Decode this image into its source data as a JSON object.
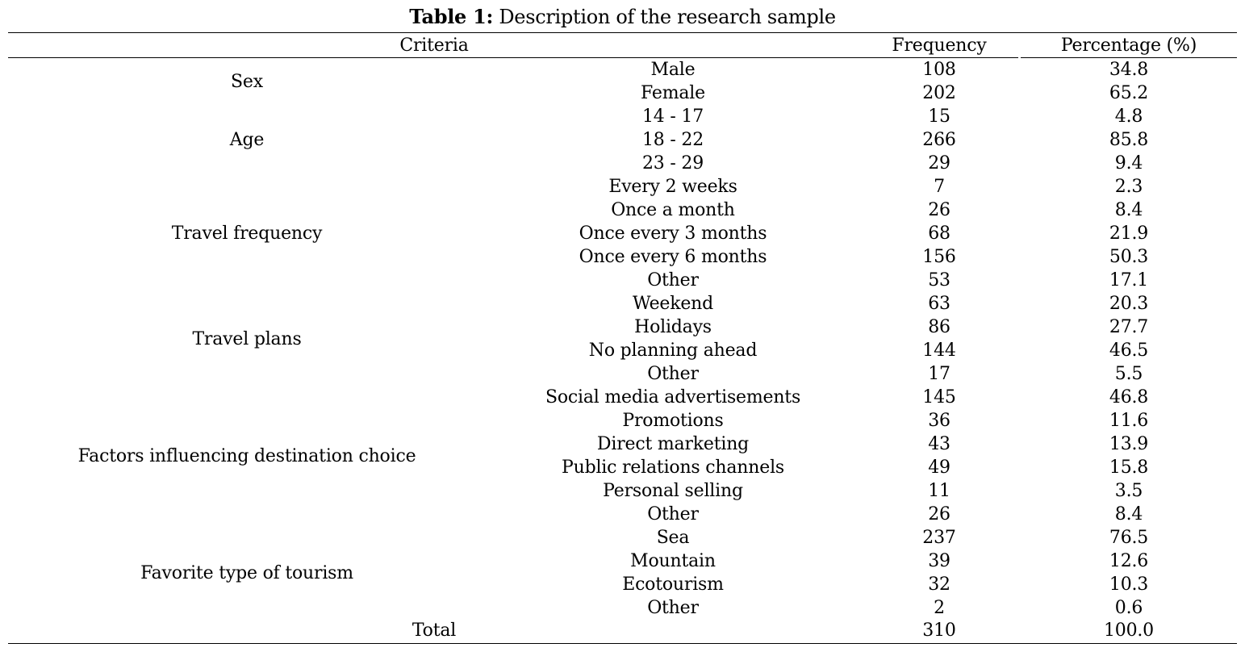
{
  "caption": {
    "label": "Table 1:",
    "text": " Description of the research sample"
  },
  "header": {
    "criteria": "Criteria",
    "frequency": "Frequency",
    "percentage": "Percentage (%)"
  },
  "groups": [
    {
      "name": "Sex",
      "rows": [
        {
          "label": "Male",
          "frequency": "108",
          "percentage": "34.8"
        },
        {
          "label": "Female",
          "frequency": "202",
          "percentage": "65.2"
        }
      ]
    },
    {
      "name": "Age",
      "rows": [
        {
          "label": "14 - 17",
          "frequency": "15",
          "percentage": "4.8"
        },
        {
          "label": "18 - 22",
          "frequency": "266",
          "percentage": "85.8"
        },
        {
          "label": "23 - 29",
          "frequency": "29",
          "percentage": "9.4"
        }
      ]
    },
    {
      "name": "Travel frequency",
      "rows": [
        {
          "label": "Every 2 weeks",
          "frequency": "7",
          "percentage": "2.3"
        },
        {
          "label": "Once a month",
          "frequency": "26",
          "percentage": "8.4"
        },
        {
          "label": "Once every 3 months",
          "frequency": "68",
          "percentage": "21.9"
        },
        {
          "label": "Once every 6 months",
          "frequency": "156",
          "percentage": "50.3"
        },
        {
          "label": "Other",
          "frequency": "53",
          "percentage": "17.1"
        }
      ]
    },
    {
      "name": "Travel plans",
      "rows": [
        {
          "label": "Weekend",
          "frequency": "63",
          "percentage": "20.3"
        },
        {
          "label": "Holidays",
          "frequency": "86",
          "percentage": "27.7"
        },
        {
          "label": "No planning ahead",
          "frequency": "144",
          "percentage": "46.5"
        },
        {
          "label": "Other",
          "frequency": "17",
          "percentage": "5.5"
        }
      ]
    },
    {
      "name": "Factors influencing destination choice",
      "rows": [
        {
          "label": "Social media advertisements",
          "frequency": "145",
          "percentage": "46.8"
        },
        {
          "label": "Promotions",
          "frequency": "36",
          "percentage": "11.6"
        },
        {
          "label": "Direct marketing",
          "frequency": "43",
          "percentage": "13.9"
        },
        {
          "label": "Public relations channels",
          "frequency": "49",
          "percentage": "15.8"
        },
        {
          "label": "Personal selling",
          "frequency": "11",
          "percentage": "3.5"
        },
        {
          "label": "Other",
          "frequency": "26",
          "percentage": "8.4"
        }
      ]
    },
    {
      "name": "Favorite type of tourism",
      "rows": [
        {
          "label": "Sea",
          "frequency": "237",
          "percentage": "76.5"
        },
        {
          "label": "Mountain",
          "frequency": "39",
          "percentage": "12.6"
        },
        {
          "label": "Ecotourism",
          "frequency": "32",
          "percentage": "10.3"
        },
        {
          "label": "Other",
          "frequency": "2",
          "percentage": "0.6"
        }
      ]
    }
  ],
  "total": {
    "label": "Total",
    "frequency": "310",
    "percentage": "100.0"
  }
}
